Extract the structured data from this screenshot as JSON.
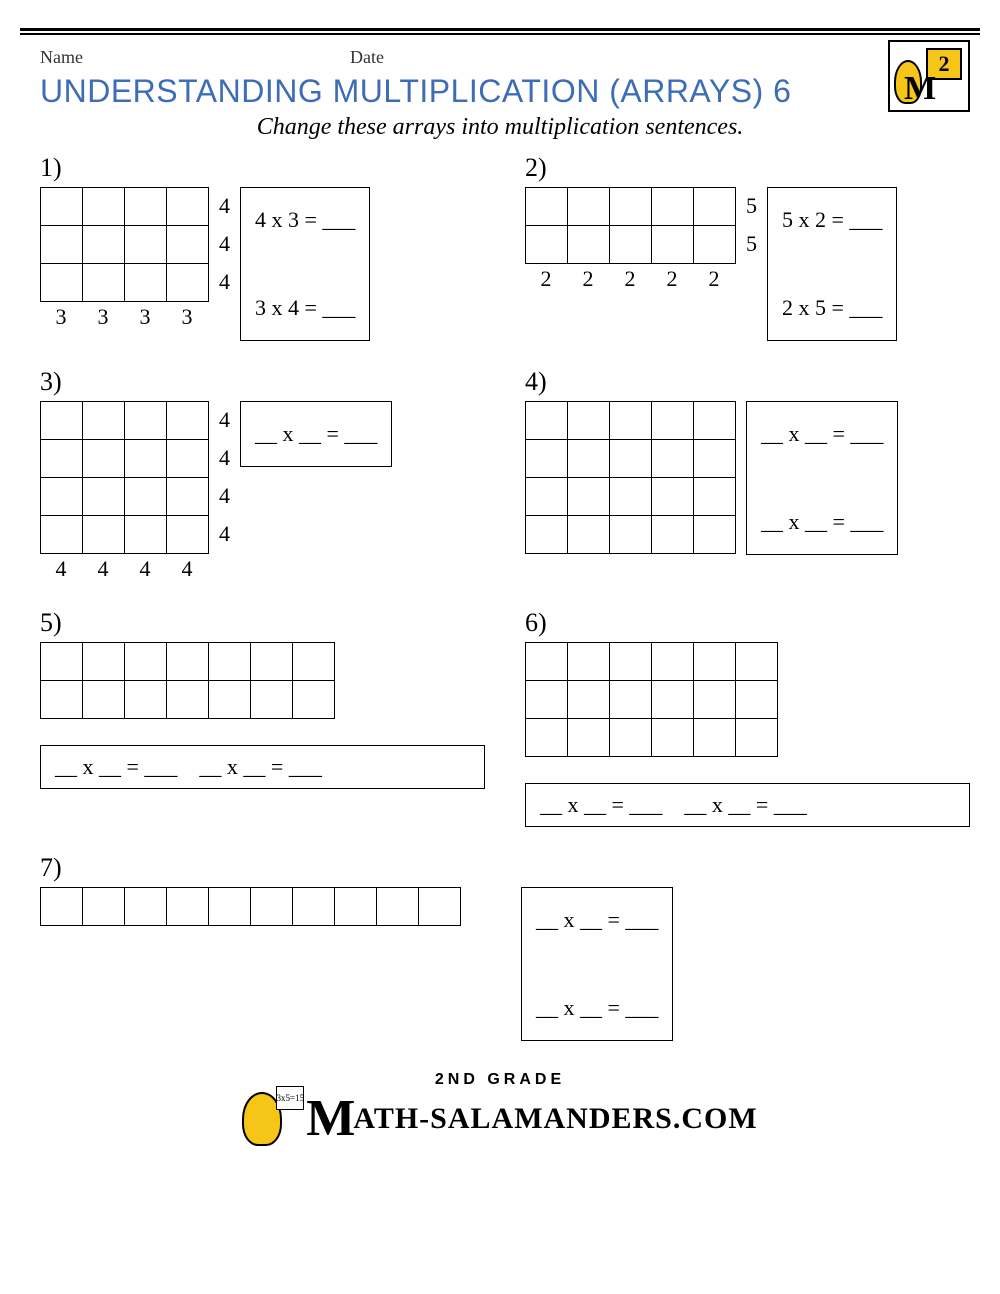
{
  "header": {
    "name_label": "Name",
    "date_label": "Date"
  },
  "title": "UNDERSTANDING MULTIPLICATION (ARRAYS) 6",
  "subtitle": "Change these arrays into multiplication sentences.",
  "corner_logo": {
    "grade_digit": "2"
  },
  "problems": [
    {
      "num": "1)",
      "grid": {
        "rows": 3,
        "cols": 4
      },
      "row_labels": [
        "4",
        "4",
        "4"
      ],
      "col_labels": [
        "3",
        "3",
        "3",
        "3"
      ],
      "answers": "4 x 3 = ___\n\n3 x 4 = ___",
      "answer_layout": "side"
    },
    {
      "num": "2)",
      "grid": {
        "rows": 2,
        "cols": 5
      },
      "row_labels": [
        "5",
        "5"
      ],
      "col_labels": [
        "2",
        "2",
        "2",
        "2",
        "2"
      ],
      "answers": "5 x 2 = ___\n\n2 x 5 = ___",
      "answer_layout": "side"
    },
    {
      "num": "3)",
      "grid": {
        "rows": 4,
        "cols": 4
      },
      "row_labels": [
        "4",
        "4",
        "4",
        "4"
      ],
      "col_labels": [
        "4",
        "4",
        "4",
        "4"
      ],
      "answers": "__ x __ = ___",
      "answer_layout": "side"
    },
    {
      "num": "4)",
      "grid": {
        "rows": 4,
        "cols": 5
      },
      "row_labels": [],
      "col_labels": [],
      "answers": "__ x __ = ___\n\n__ x __ = ___",
      "answer_layout": "side"
    },
    {
      "num": "5)",
      "grid": {
        "rows": 2,
        "cols": 7
      },
      "row_labels": [],
      "col_labels": [],
      "answers": "__ x __ = ___    __ x __ = ___",
      "answer_layout": "below"
    },
    {
      "num": "6)",
      "grid": {
        "rows": 3,
        "cols": 6
      },
      "row_labels": [],
      "col_labels": [],
      "answers": "__ x __ = ___    __ x __ = ___",
      "answer_layout": "below"
    },
    {
      "num": "7)",
      "grid": {
        "rows": 1,
        "cols": 10
      },
      "row_labels": [],
      "col_labels": [],
      "answers": "__ x __ = ___\n\n__ x __ = ___",
      "answer_layout": "side-gap"
    }
  ],
  "footer": {
    "grade_text": "2ND GRADE",
    "sign_text": "3x5=15",
    "brand_rest": "ATH-SALAMANDERS.COM"
  },
  "colors": {
    "title": "#3d6db5",
    "accent_yellow": "#f5c518",
    "rule": "#000000"
  }
}
